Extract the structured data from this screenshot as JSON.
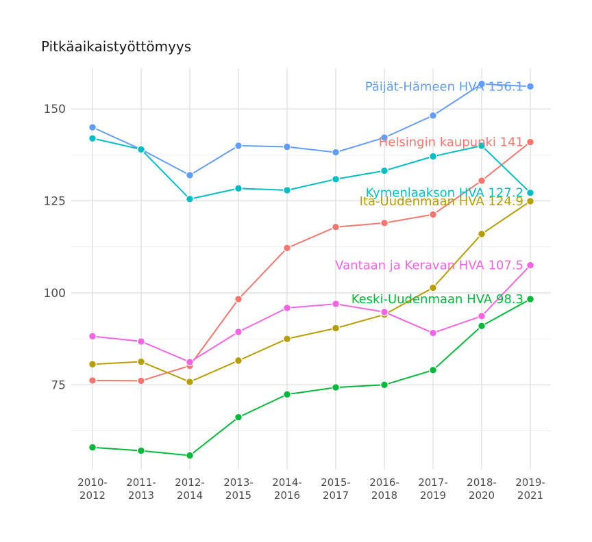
{
  "chart_data": {
    "type": "line",
    "title": "Pitkäaikaistyöttömyys",
    "xlabel": "",
    "ylabel": "",
    "ylim": [
      52,
      161
    ],
    "y_ticks": [
      75,
      100,
      125,
      150
    ],
    "categories": [
      "2010-2012",
      "2011-2013",
      "2012-2014",
      "2013-2015",
      "2014-2016",
      "2015-2017",
      "2016-2018",
      "2017-2019",
      "2018-2020",
      "2019-2021"
    ],
    "tick_lines": [
      [
        "2010-",
        "2012"
      ],
      [
        "2011-",
        "2013"
      ],
      [
        "2012-",
        "2014"
      ],
      [
        "2013-",
        "2015"
      ],
      [
        "2014-",
        "2016"
      ],
      [
        "2015-",
        "2017"
      ],
      [
        "2016-",
        "2018"
      ],
      [
        "2017-",
        "2019"
      ],
      [
        "2018-",
        "2020"
      ],
      [
        "2019-",
        "2021"
      ]
    ],
    "series": [
      {
        "name": "Päijät-Hämeen HVA",
        "label": "Päijät-Hämeen HVA 156.1",
        "color": "#619CFF",
        "values": [
          145,
          139,
          132,
          140,
          139.7,
          138.2,
          142.2,
          148.2,
          156.8,
          156.1
        ]
      },
      {
        "name": "Helsingin kaupunki",
        "label": "Helsingin kaupunki 141",
        "color": "#F8766D",
        "values": [
          76.2,
          76.1,
          80.2,
          98.3,
          112.2,
          117.9,
          119,
          121.3,
          130.5,
          141
        ]
      },
      {
        "name": "Kymenlaakson HVA",
        "label": "Kymenlaakson HVA 127.2",
        "color": "#00BFC4",
        "values": [
          142,
          139,
          125.5,
          128.4,
          127.9,
          130.9,
          133.2,
          137.1,
          140,
          127.2
        ]
      },
      {
        "name": "Itä-Uudenmaan HVA",
        "label": "Itä-Uudenmaan HVA 124.9",
        "color": "#B79F00",
        "values": [
          80.6,
          81.3,
          75.8,
          81.6,
          87.5,
          90.4,
          94.1,
          101.4,
          116,
          124.9
        ]
      },
      {
        "name": "Vantaan ja Keravan HVA",
        "label": "Vantaan ja Keravan HVA 107.5",
        "color": "#F564E3",
        "values": [
          88.2,
          86.8,
          81.2,
          89.4,
          95.9,
          97,
          94.8,
          89.1,
          93.7,
          107.5
        ]
      },
      {
        "name": "Keski-Uudenmaan HVA",
        "label": "Keski-Uudenmaan HVA 98.3",
        "color": "#00BA38",
        "values": [
          58,
          57.1,
          55.8,
          66.2,
          72.4,
          74.3,
          75,
          79,
          91,
          98.3
        ]
      }
    ]
  }
}
